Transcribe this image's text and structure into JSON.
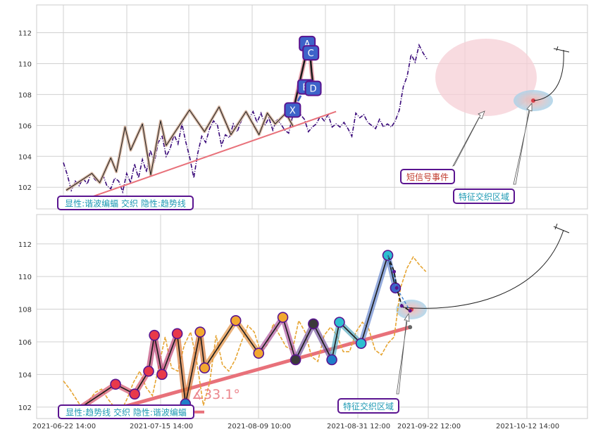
{
  "chart_data": [
    {
      "type": "line",
      "panel": "top",
      "title": "",
      "xlabel": "",
      "ylabel": "",
      "ylim": [
        100.6,
        113.8
      ],
      "y_ticks": [
        102,
        104,
        106,
        108,
        110,
        112
      ],
      "grid": true,
      "colors": {
        "price": "#3a0a7a",
        "zigzag_outer": "#d8b9a6",
        "zigzag_inner": "#1a1a1a",
        "trend": "#e8717a",
        "pattern_fill": "#f5cfd6",
        "node_fill": "#3d63c9",
        "node_border": "#5a1490",
        "label_text": "#1f9ab4",
        "label_red": "#c0392b"
      },
      "series": [
        {
          "role": "price",
          "values": [
            103.6,
            102.8,
            101.8,
            102.4,
            102.1,
            102.6,
            102.2,
            102.9,
            102.5,
            102.3,
            102.8,
            102.1,
            101.9,
            102.6,
            102.4,
            101.7,
            102.9,
            102.3,
            103.5,
            102.6,
            103.8,
            103.0,
            104.4,
            103.6,
            104.9,
            105.3,
            104.0,
            104.5,
            105.4,
            104.8,
            106.1,
            104.9,
            103.9,
            102.6,
            104.2,
            105.3,
            104.9,
            105.8,
            106.3,
            106.0,
            104.7,
            105.4,
            105.2,
            106.1,
            105.6,
            106.3,
            106.8,
            106.5,
            106.9,
            106.2,
            106.8,
            106.0,
            106.5,
            105.7,
            106.4,
            106.1,
            105.7,
            105.5,
            106.6,
            107.1,
            106.7,
            106.4,
            105.6,
            105.9,
            106.1,
            106.6,
            106.3,
            106.7,
            105.9,
            106.1,
            105.9,
            106.2,
            105.8,
            105.3,
            106.8,
            106.5,
            106.7,
            106.2,
            106.0,
            105.8,
            106.4,
            105.9,
            106.1,
            105.9,
            106.3,
            107.0,
            108.5,
            109.2,
            110.6,
            110.1,
            111.2,
            110.7,
            110.3
          ]
        },
        {
          "role": "zigzag",
          "points": [
            [
              0.7,
              101.8
            ],
            [
              7.2,
              102.9
            ],
            [
              9.2,
              102.3
            ],
            [
              12.0,
              103.9
            ],
            [
              13.4,
              103.0
            ],
            [
              15.6,
              105.9
            ],
            [
              17.0,
              104.4
            ],
            [
              20.0,
              106.1
            ],
            [
              22.1,
              102.8
            ],
            [
              24.6,
              106.3
            ],
            [
              26.0,
              104.7
            ],
            [
              31.9,
              107.0
            ],
            [
              35.7,
              105.6
            ],
            [
              39.4,
              107.2
            ],
            [
              42.4,
              105.4
            ],
            [
              46.2,
              106.9
            ],
            [
              49.5,
              105.4
            ],
            [
              51.6,
              106.8
            ],
            [
              53.6,
              106.1
            ],
            [
              56.3,
              106.8
            ],
            [
              58.2,
              105.9
            ]
          ]
        },
        {
          "role": "trend",
          "points": [
            [
              0.0,
              100.9
            ],
            [
              69.0,
              106.9
            ]
          ]
        },
        {
          "role": "pattern",
          "points": [
            [
              58.2,
              107.0
            ],
            [
              61.9,
              111.2
            ],
            [
              62.4,
              110.7
            ],
            [
              62.8,
              109.5
            ],
            [
              63.3,
              108.4
            ]
          ],
          "dashed": [
            [
              58.2,
              107.0
            ],
            [
              61.2,
              108.5
            ],
            [
              63.3,
              108.4
            ]
          ]
        }
      ],
      "pattern_labels": [
        {
          "name": "X",
          "x": 58.0,
          "y": 107.0
        },
        {
          "name": "A",
          "x": 61.7,
          "y": 111.3
        },
        {
          "name": "C",
          "x": 62.6,
          "y": 110.7
        },
        {
          "name": "B",
          "x": 61.3,
          "y": 108.5
        },
        {
          "name": "D",
          "x": 63.2,
          "y": 108.4
        }
      ],
      "annotations": [
        {
          "id": "legend",
          "text": "显性:谐波编蝠 交织 隐性:趋势线"
        },
        {
          "id": "short-signal",
          "text": "短信号事件"
        },
        {
          "id": "cross-zone",
          "text": "特征交织区域"
        }
      ]
    },
    {
      "type": "line",
      "panel": "bottom",
      "title": "",
      "xlabel": "",
      "ylabel": "",
      "ylim": [
        101.3,
        113.8
      ],
      "y_ticks": [
        102,
        104,
        106,
        108,
        110,
        112
      ],
      "x_ticks": [
        "2021-06-22 14:00",
        "2021-07-15 14:00",
        "2021-08-09 10:00",
        "2021-08-31 12:00",
        "2021-09-22 12:00",
        "2021-10-12 14:00"
      ],
      "grid": true,
      "colors": {
        "price": "#e6a533",
        "trend": "#e8717a",
        "zigzag_inner": "#1a1a1a"
      },
      "series": [
        {
          "role": "price",
          "values": [
            103.6,
            103.1,
            102.5,
            101.9,
            102.4,
            102.9,
            103.1,
            102.5,
            102.0,
            101.7,
            102.5,
            103.5,
            104.2,
            103.2,
            102.7,
            104.5,
            106.3,
            104.4,
            104.2,
            105.8,
            106.6,
            104.7,
            102.1,
            103.5,
            106.4,
            104.6,
            104.2,
            104.9,
            106.0,
            107.0,
            106.6,
            105.4,
            105.8,
            107.1,
            106.4,
            105.7,
            105.5,
            107.3,
            106.6,
            105.1,
            104.8,
            106.4,
            106.9,
            106.4,
            105.4,
            105.4,
            106.6,
            107.2,
            106.8,
            105.5,
            105.2,
            105.9,
            106.3,
            109.3,
            110.5,
            111.2,
            110.7,
            110.3
          ]
        },
        {
          "role": "zigzag",
          "points": [
            [
              1.3,
              101.6
            ],
            [
              8.2,
              103.4
            ],
            [
              11.2,
              102.8
            ],
            [
              13.4,
              104.2
            ],
            [
              14.3,
              106.4
            ],
            [
              15.5,
              104.0
            ],
            [
              17.9,
              106.5
            ],
            [
              19.2,
              102.2
            ],
            [
              21.5,
              106.6
            ],
            [
              22.2,
              104.4
            ],
            [
              27.1,
              107.3
            ],
            [
              30.7,
              105.3
            ],
            [
              34.5,
              107.5
            ],
            [
              36.5,
              104.9
            ],
            [
              39.3,
              107.1
            ],
            [
              42.2,
              104.9
            ],
            [
              43.4,
              107.2
            ],
            [
              46.8,
              105.9
            ],
            [
              51.0,
              111.3
            ],
            [
              52.2,
              109.3
            ]
          ]
        },
        {
          "role": "trend",
          "points": [
            [
              6.5,
              101.7
            ],
            [
              54.5,
              106.9
            ]
          ],
          "angle_label": "∡33.1°"
        },
        {
          "role": "forecast",
          "points": [
            [
              51.0,
              111.3
            ],
            [
              52.0,
              110.3
            ],
            [
              52.4,
              109.3
            ],
            [
              53.2,
              108.2
            ],
            [
              54.5,
              107.9
            ]
          ],
          "dashed": [
            [
              51.0,
              111.3
            ],
            [
              52.4,
              109.3
            ],
            [
              54.5,
              107.9
            ]
          ]
        }
      ],
      "annotations": [
        {
          "id": "legend",
          "text": "显性:趋势线 交织 隐性:谐波编蝠"
        },
        {
          "id": "cross-zone",
          "text": "特征交织区域"
        }
      ]
    }
  ]
}
